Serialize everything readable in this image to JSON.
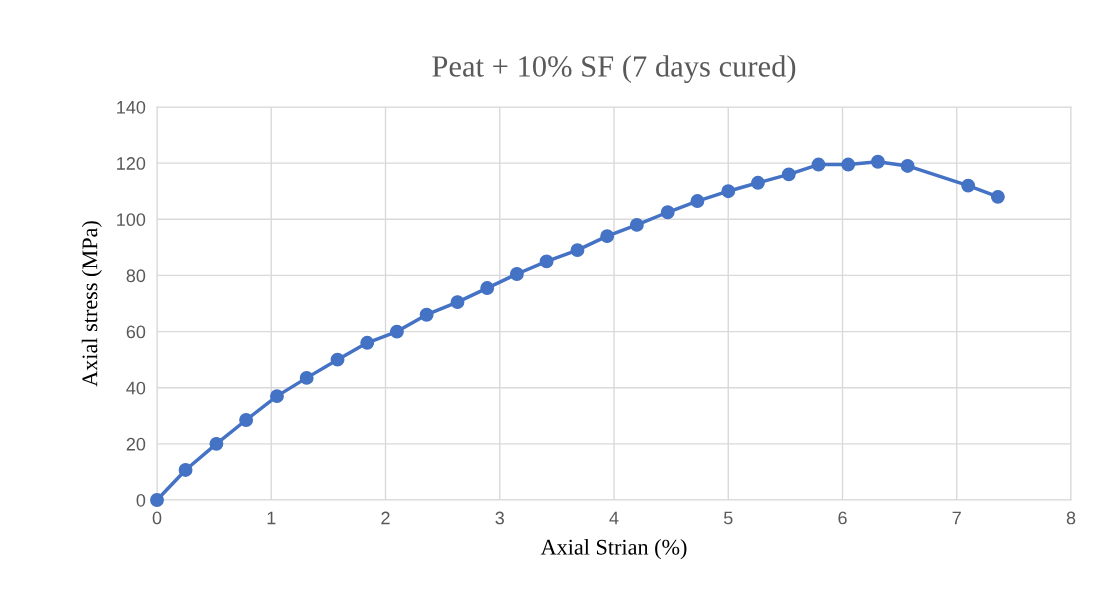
{
  "chart_data": {
    "type": "line",
    "title": "Peat + 10% SF (7 days cured)",
    "xlabel": "Axial Strian (%)",
    "ylabel": "Axial stress (MPa)",
    "x": [
      0,
      0.25,
      0.52,
      0.78,
      1.05,
      1.31,
      1.58,
      1.84,
      2.1,
      2.36,
      2.63,
      2.89,
      3.15,
      3.41,
      3.68,
      3.94,
      4.2,
      4.47,
      4.73,
      5.0,
      5.26,
      5.53,
      5.79,
      6.05,
      6.31,
      6.57,
      7.1,
      7.36
    ],
    "series": [
      {
        "color": "#4472c4",
        "values": [
          0,
          10.7,
          20,
          28.5,
          37,
          43.5,
          50,
          56,
          60,
          66,
          70.5,
          75.5,
          80.5,
          85,
          89,
          94,
          98,
          102.5,
          106.5,
          110,
          113,
          116,
          119.5,
          119.5,
          120.5,
          119,
          112,
          108
        ]
      }
    ],
    "xlim": [
      0,
      8
    ],
    "xticks": [
      0,
      1,
      2,
      3,
      4,
      5,
      6,
      7,
      8
    ],
    "ylim": [
      0,
      140
    ],
    "yticks": [
      0,
      20,
      40,
      60,
      80,
      100,
      120,
      140
    ],
    "grid": true,
    "legend": false,
    "marker": "circle",
    "line_style": "solid"
  }
}
